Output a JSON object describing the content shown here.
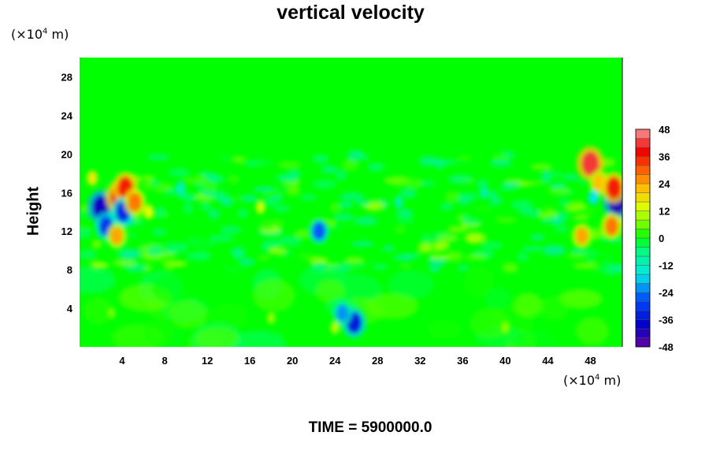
{
  "chart_data": {
    "type": "heatmap",
    "title": "vertical velocity",
    "ylabel": "Height",
    "xlabel": "",
    "x_unit": "(×10⁴ m)",
    "y_unit": "(×10⁴ m)",
    "x_unit_base": "(×10",
    "x_unit_exp": "4",
    "x_unit_tail": " m)",
    "xlim": [
      0,
      51
    ],
    "ylim": [
      0,
      30
    ],
    "xticks": [
      4,
      8,
      12,
      16,
      20,
      24,
      28,
      32,
      36,
      40,
      44,
      48
    ],
    "yticks": [
      4,
      8,
      12,
      16,
      20,
      24,
      28
    ],
    "colorbar": {
      "range": [
        -48,
        48
      ],
      "ticks": [
        48,
        36,
        24,
        12,
        0,
        -12,
        -24,
        -36,
        -48
      ],
      "step": 4
    },
    "features": [
      {
        "x": 2,
        "y": 14.5,
        "value": -40
      },
      {
        "x": 2.5,
        "y": 12.5,
        "value": -30
      },
      {
        "x": 3.7,
        "y": 15.5,
        "value": 40
      },
      {
        "x": 4.3,
        "y": 16.5,
        "value": 36
      },
      {
        "x": 4.1,
        "y": 14,
        "value": -32
      },
      {
        "x": 5.2,
        "y": 15,
        "value": 28
      },
      {
        "x": 3.5,
        "y": 11.5,
        "value": 24
      },
      {
        "x": 1.2,
        "y": 17.5,
        "value": 16
      },
      {
        "x": 6.5,
        "y": 14,
        "value": 14
      },
      {
        "x": 9.5,
        "y": 16.5,
        "value": -12
      },
      {
        "x": 17,
        "y": 14.5,
        "value": 12
      },
      {
        "x": 22.5,
        "y": 12,
        "value": -26
      },
      {
        "x": 25.8,
        "y": 2.5,
        "value": -34
      },
      {
        "x": 24.7,
        "y": 3.5,
        "value": -22
      },
      {
        "x": 24,
        "y": 2,
        "value": 10
      },
      {
        "x": 48,
        "y": 19,
        "value": 42
      },
      {
        "x": 48.8,
        "y": 17,
        "value": 22
      },
      {
        "x": 50.5,
        "y": 15,
        "value": -42
      },
      {
        "x": 50.2,
        "y": 16.5,
        "value": 36
      },
      {
        "x": 50,
        "y": 12.5,
        "value": 28
      },
      {
        "x": 47.2,
        "y": 11.5,
        "value": 24
      },
      {
        "x": 48.3,
        "y": 15.5,
        "value": -16
      },
      {
        "x": 38,
        "y": 16,
        "value": -10
      },
      {
        "x": 30,
        "y": 15,
        "value": -10
      },
      {
        "x": 40,
        "y": 2,
        "value": 8
      },
      {
        "x": 18,
        "y": 3,
        "value": 8
      },
      {
        "x": 3,
        "y": 3.5,
        "value": 6
      }
    ]
  },
  "time_label": "TIME = 5900000.0",
  "colors": {
    "background": "#00ff00",
    "frame": "#000000"
  }
}
